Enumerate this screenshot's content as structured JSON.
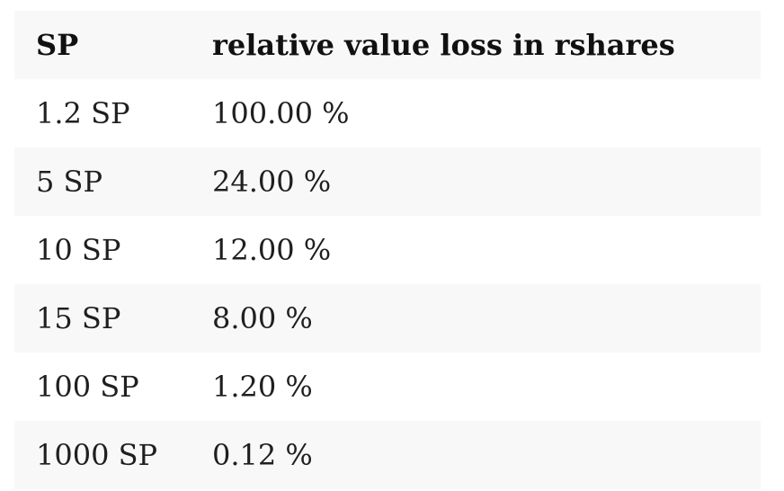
{
  "table": {
    "headers": {
      "sp": "SP",
      "loss": "relative value loss in rshares"
    },
    "rows": [
      {
        "sp": "1.2 SP",
        "loss": "100.00 %"
      },
      {
        "sp": "5 SP",
        "loss": "24.00 %"
      },
      {
        "sp": "10 SP",
        "loss": "12.00 %"
      },
      {
        "sp": "15 SP",
        "loss": "8.00 %"
      },
      {
        "sp": "100 SP",
        "loss": "1.20 %"
      },
      {
        "sp": "1000 SP",
        "loss": "0.12 %"
      }
    ]
  }
}
